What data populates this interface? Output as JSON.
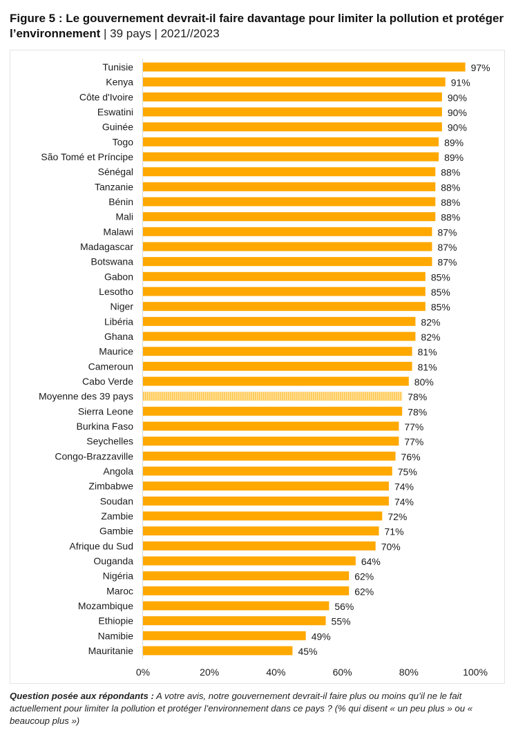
{
  "title": {
    "bold": "Figure 5 : Le gouvernement devrait-il faire davantage pour limiter la pollution et protéger l’environnement",
    "suffix": " | 39 pays | 2021//2023"
  },
  "footnote": {
    "label": "Question posée aux répondants :",
    "text": " A votre avis, notre gouvernement devrait-il faire plus ou moins qu’il ne le fait actuellement pour limiter la pollution et protéger l’environnement dans ce pays ? (% qui disent « un peu plus » ou « beaucoup plus »)"
  },
  "colors": {
    "bar": "#FFA800",
    "average_bar_stripe": "#FFC64D",
    "average_bar_bg": "#FFE6A8",
    "axis_line": "#d9d9d9",
    "text": "#1a1a1a"
  },
  "chart_data": {
    "type": "bar",
    "orientation": "horizontal",
    "title": "Le gouvernement devrait-il faire davantage pour limiter la pollution et protéger l’environnement",
    "xlabel": "",
    "ylabel": "",
    "xlim": [
      0,
      100
    ],
    "unit": "%",
    "grid": false,
    "legend": "none",
    "x_ticks": [
      "0%",
      "20%",
      "40%",
      "60%",
      "80%",
      "100%"
    ],
    "x_tick_values": [
      0,
      20,
      40,
      60,
      80,
      100
    ],
    "categories": [
      "Tunisie",
      "Kenya",
      "Côte d'Ivoire",
      "Eswatini",
      "Guinée",
      "Togo",
      "São Tomé et Príncipe",
      "Sénégal",
      "Tanzanie",
      "Bénin",
      "Mali",
      "Malawi",
      "Madagascar",
      "Botswana",
      "Gabon",
      "Lesotho",
      "Niger",
      "Libéria",
      "Ghana",
      "Maurice",
      "Cameroun",
      "Cabo Verde",
      "Moyenne des 39 pays",
      "Sierra Leone",
      "Burkina Faso",
      "Seychelles",
      "Congo-Brazzaville",
      "Angola",
      "Zimbabwe",
      "Soudan",
      "Zambie",
      "Gambie",
      "Afrique du Sud",
      "Ouganda",
      "Nigéria",
      "Maroc",
      "Mozambique",
      "Ethiopie",
      "Namibie",
      "Mauritanie"
    ],
    "values": [
      97,
      91,
      90,
      90,
      90,
      89,
      89,
      88,
      88,
      88,
      88,
      87,
      87,
      87,
      85,
      85,
      85,
      82,
      82,
      81,
      81,
      80,
      78,
      78,
      77,
      77,
      76,
      75,
      74,
      74,
      72,
      71,
      70,
      64,
      62,
      62,
      56,
      55,
      49,
      45
    ],
    "data_labels": [
      "97%",
      "91%",
      "90%",
      "90%",
      "90%",
      "89%",
      "89%",
      "88%",
      "88%",
      "88%",
      "88%",
      "87%",
      "87%",
      "87%",
      "85%",
      "85%",
      "85%",
      "82%",
      "82%",
      "81%",
      "81%",
      "80%",
      "78%",
      "78%",
      "77%",
      "77%",
      "76%",
      "75%",
      "74%",
      "74%",
      "72%",
      "71%",
      "70%",
      "64%",
      "62%",
      "62%",
      "56%",
      "55%",
      "49%",
      "45%"
    ],
    "highlight": {
      "category": "Moyenne des 39 pays",
      "style": "striped"
    }
  }
}
